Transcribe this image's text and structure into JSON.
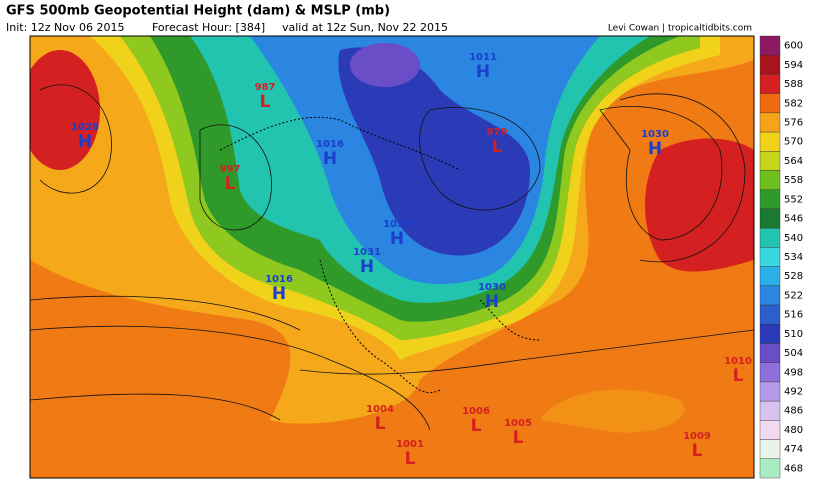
{
  "header": {
    "title": "GFS 500mb Geopotential Height (dam) & MSLP (mb)",
    "init": "Init: 12z Nov 06 2015",
    "forecast": "Forecast Hour: [384]",
    "valid": "valid at 12z Sun, Nov 22 2015",
    "credit": "Levi Cowan | tropicaltidbits.com"
  },
  "colorbar": {
    "levels": [
      {
        "value": 600,
        "color": "#8b1a63"
      },
      {
        "value": 594,
        "color": "#a8141a"
      },
      {
        "value": 588,
        "color": "#d42020"
      },
      {
        "value": 582,
        "color": "#f06a10"
      },
      {
        "value": 576,
        "color": "#f5a41a"
      },
      {
        "value": 570,
        "color": "#f0d21a"
      },
      {
        "value": 564,
        "color": "#c6d51a"
      },
      {
        "value": 558,
        "color": "#6fbf1f"
      },
      {
        "value": 552,
        "color": "#2f9a2a"
      },
      {
        "value": 546,
        "color": "#1a7a30"
      },
      {
        "value": 540,
        "color": "#22c4b0"
      },
      {
        "value": 534,
        "color": "#39d7e0"
      },
      {
        "value": 528,
        "color": "#2ab0e6"
      },
      {
        "value": 522,
        "color": "#2a86e0"
      },
      {
        "value": 516,
        "color": "#2a5fcc"
      },
      {
        "value": 510,
        "color": "#2b3bb8"
      },
      {
        "value": 504,
        "color": "#6a4ec8"
      },
      {
        "value": 498,
        "color": "#8f6fd9"
      },
      {
        "value": 492,
        "color": "#b49ae6"
      },
      {
        "value": 486,
        "color": "#d7c3f0"
      },
      {
        "value": 480,
        "color": "#f1d9f2"
      },
      {
        "value": 474,
        "color": "#e8f4ea"
      },
      {
        "value": 468,
        "color": "#a9ecc4"
      }
    ]
  },
  "centers": [
    {
      "letter": "H",
      "value": 1028
    },
    {
      "letter": "L",
      "value": 987
    },
    {
      "letter": "L",
      "value": 997
    },
    {
      "letter": "H",
      "value": 1016
    },
    {
      "letter": "H",
      "value": 1011
    },
    {
      "letter": "L",
      "value": 979
    },
    {
      "letter": "H",
      "value": 1030
    },
    {
      "letter": "H",
      "value": 1032
    },
    {
      "letter": "H",
      "value": 1031
    },
    {
      "letter": "H",
      "value": 1016
    },
    {
      "letter": "H",
      "value": 1030
    },
    {
      "letter": "L",
      "value": 1004
    },
    {
      "letter": "L",
      "value": 1001
    },
    {
      "letter": "L",
      "value": 1006
    },
    {
      "letter": "L",
      "value": 1005
    },
    {
      "letter": "L",
      "value": 1009
    },
    {
      "letter": "L",
      "value": 1010
    }
  ]
}
